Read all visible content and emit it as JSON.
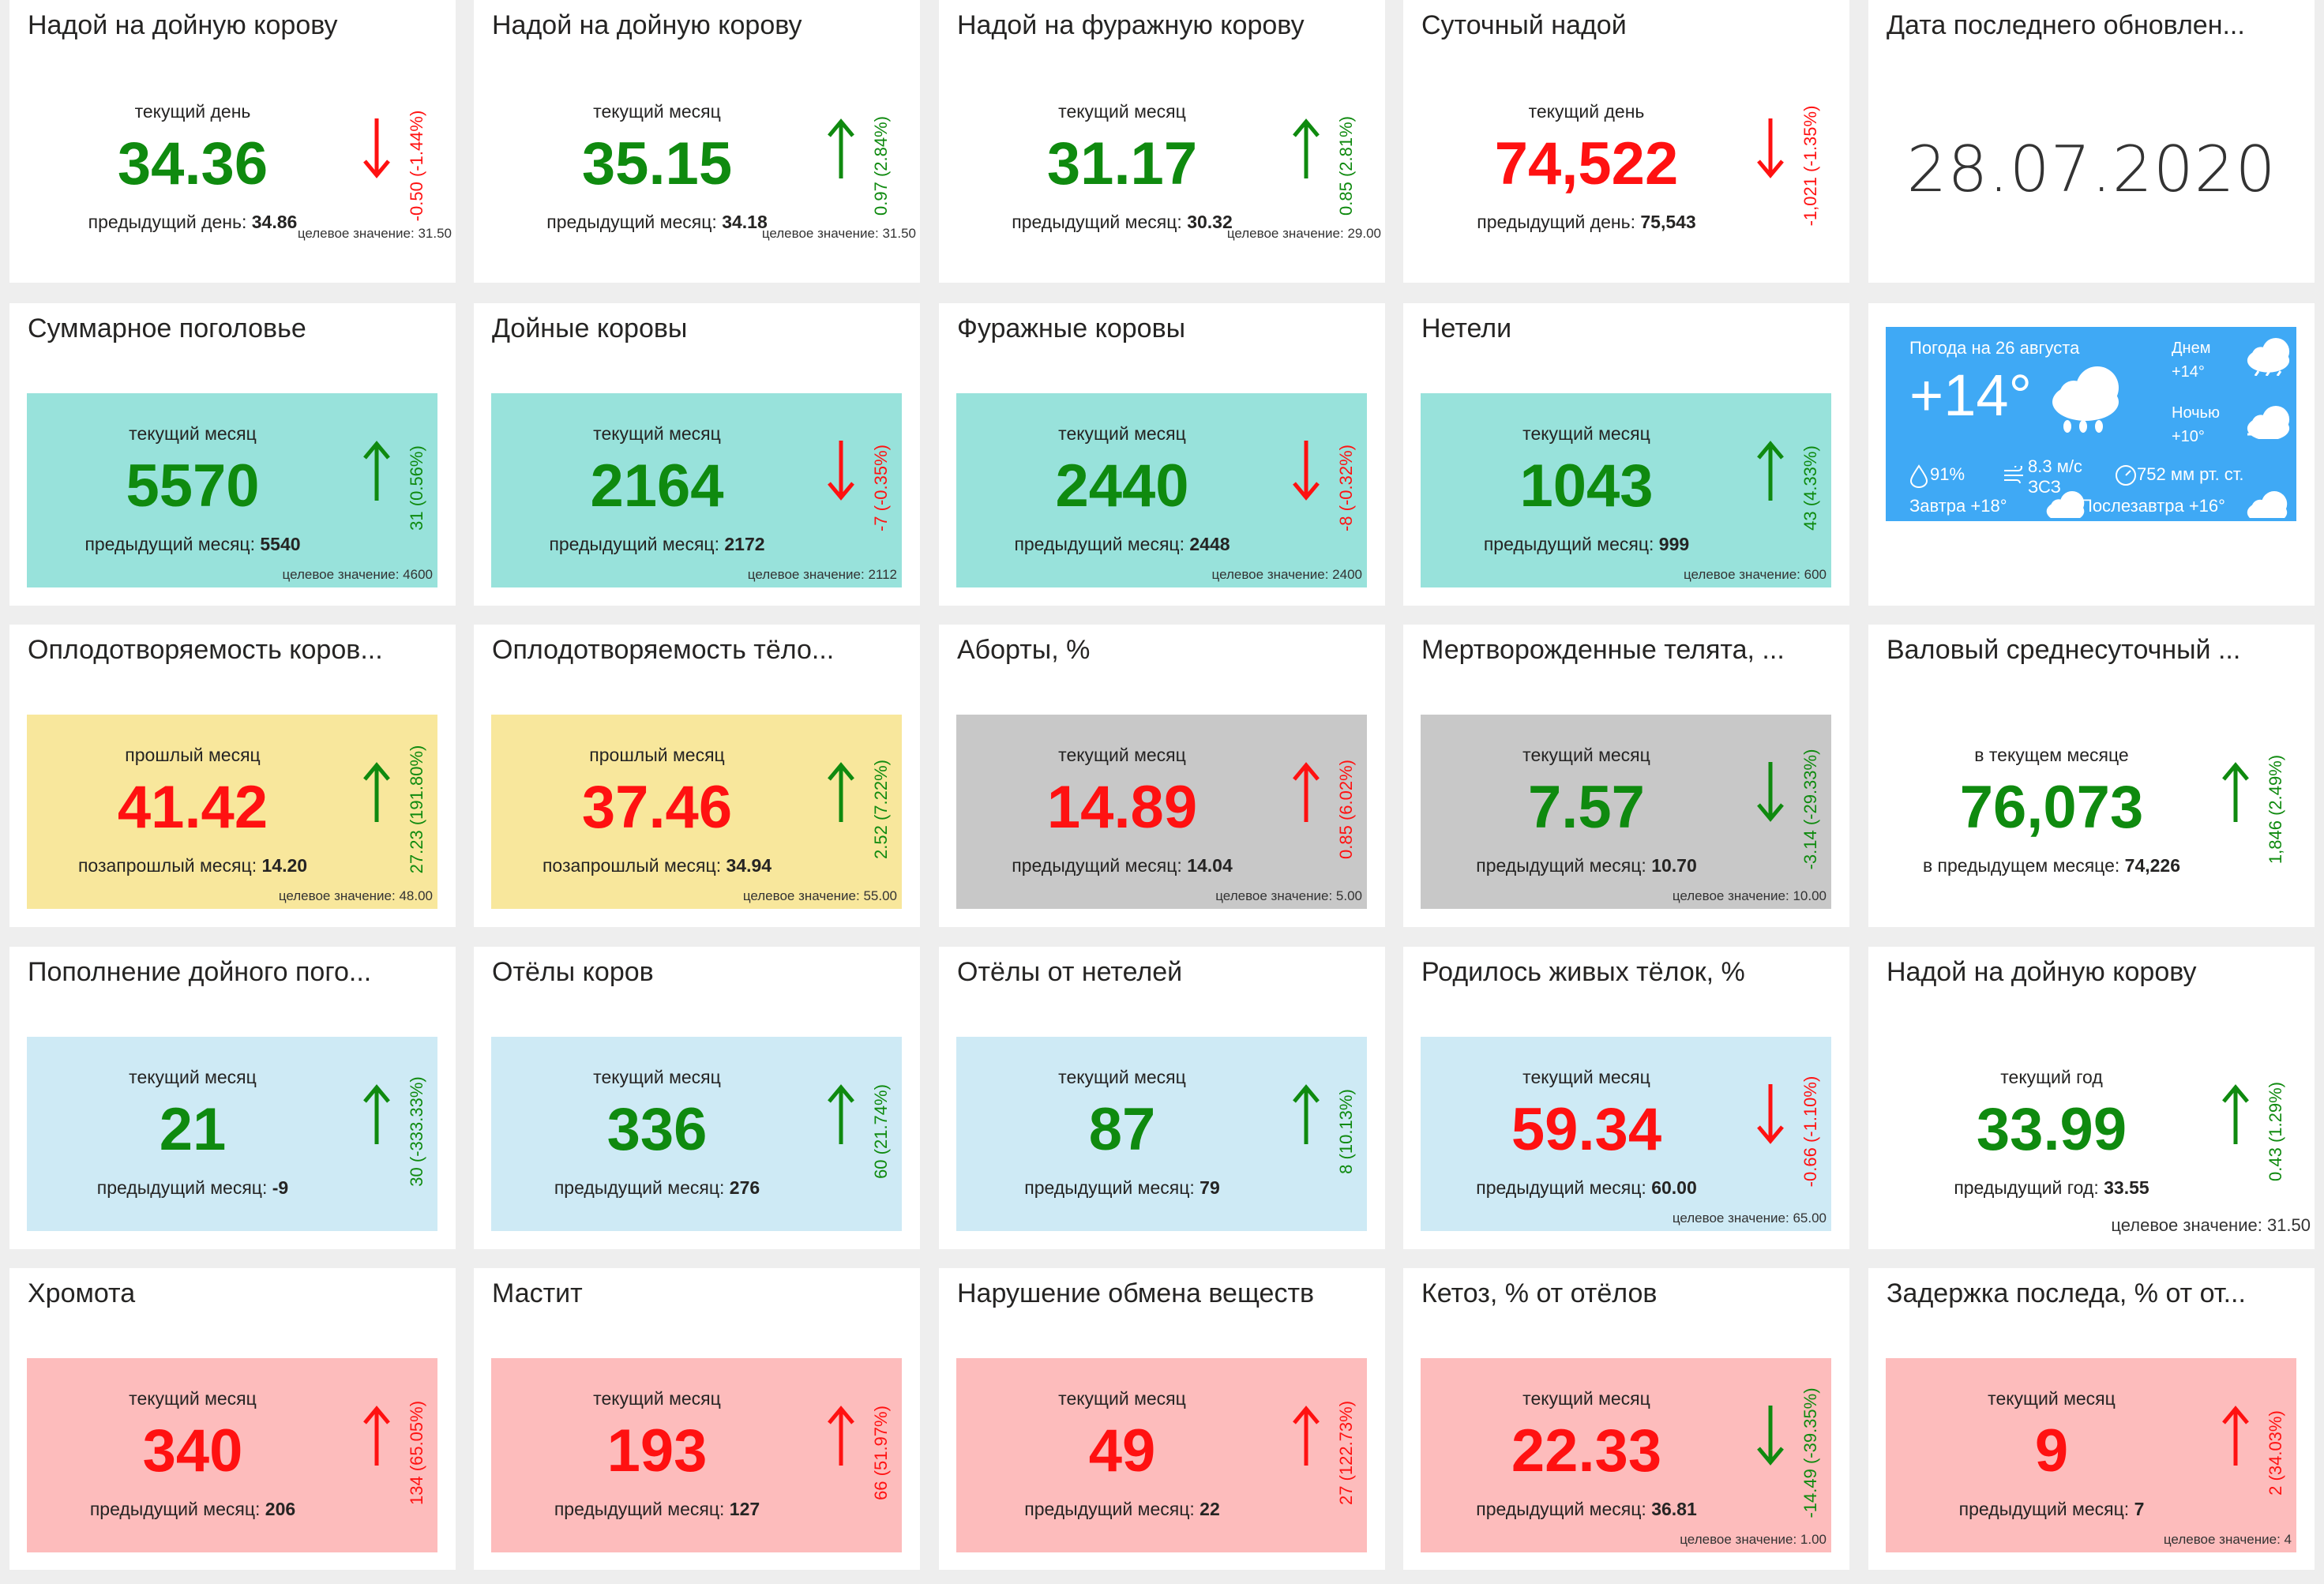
{
  "colors": {
    "green": "#0f8a0f",
    "red": "#ff1111",
    "teal": "#98e2db",
    "yellow": "#f8e79c",
    "gray": "#c8c8c8",
    "lightblue": "#ceeaf5",
    "pink": "#fdbcbc",
    "weather_bg": "#3fa9f5"
  },
  "tiles": [
    {
      "title": "Надой на дойную корову",
      "period": "текущий день",
      "value": "34.36",
      "value_color": "green",
      "prev_label": "предыдущий день:",
      "prev_value": "34.86",
      "change": "-0.50 (-1.44%)",
      "direction": "down",
      "change_color": "red",
      "target": "целевое значение: 31.50",
      "bg": "none"
    },
    {
      "title": "Надой на дойную корову",
      "period": "текущий месяц",
      "value": "35.15",
      "value_color": "green",
      "prev_label": "предыдущий месяц:",
      "prev_value": "34.18",
      "change": "0.97 (2.84%)",
      "direction": "up",
      "change_color": "green",
      "target": "целевое значение: 31.50",
      "bg": "none"
    },
    {
      "title": "Надой на фуражную корову",
      "period": "текущий месяц",
      "value": "31.17",
      "value_color": "green",
      "prev_label": "предыдущий месяц:",
      "prev_value": "30.32",
      "change": "0.85 (2.81%)",
      "direction": "up",
      "change_color": "green",
      "target": "целевое значение: 29.00",
      "bg": "none"
    },
    {
      "title": "Суточный надой",
      "period": "текущий день",
      "value": "74,522",
      "value_color": "red",
      "prev_label": "предыдущий день:",
      "prev_value": "75,543",
      "change": "-1,021 (-1.35%)",
      "direction": "down",
      "change_color": "red",
      "target": "",
      "bg": "none"
    },
    {
      "type": "date",
      "title": "Дата последнего обновлен...",
      "value": "28.07.2020"
    },
    {
      "title": "Суммарное поголовье",
      "period": "текущий месяц",
      "value": "5570",
      "value_color": "green",
      "prev_label": "предыдущий месяц:",
      "prev_value": "5540",
      "change": "31 (0.56%)",
      "direction": "up",
      "change_color": "green",
      "target": "целевое значение: 4600",
      "bg": "teal"
    },
    {
      "title": "Дойные коровы",
      "period": "текущий месяц",
      "value": "2164",
      "value_color": "green",
      "prev_label": "предыдущий месяц:",
      "prev_value": "2172",
      "change": "-7 (-0.35%)",
      "direction": "down",
      "change_color": "red",
      "target": "целевое значение: 2112",
      "bg": "teal"
    },
    {
      "title": "Фуражные коровы",
      "period": "текущий месяц",
      "value": "2440",
      "value_color": "green",
      "prev_label": "предыдущий месяц:",
      "prev_value": "2448",
      "change": "-8 (-0.32%)",
      "direction": "down",
      "change_color": "red",
      "target": "целевое значение: 2400",
      "bg": "teal"
    },
    {
      "title": "Нетели",
      "period": "текущий месяц",
      "value": "1043",
      "value_color": "green",
      "prev_label": "предыдущий месяц:",
      "prev_value": "999",
      "change": "43 (4.33%)",
      "direction": "up",
      "change_color": "green",
      "target": "целевое значение: 600",
      "bg": "teal"
    },
    {
      "type": "weather"
    },
    {
      "title": "Оплодотворяемость коров...",
      "period": "прошлый месяц",
      "value": "41.42",
      "value_color": "red",
      "prev_label": "позапрошлый месяц:",
      "prev_value": "14.20",
      "change": "27.23 (191.80%)",
      "direction": "up",
      "change_color": "green",
      "target": "целевое значение: 48.00",
      "bg": "yellow"
    },
    {
      "title": "Оплодотворяемость тёло...",
      "period": "прошлый месяц",
      "value": "37.46",
      "value_color": "red",
      "prev_label": "позапрошлый месяц:",
      "prev_value": "34.94",
      "change": "2.52 (7.22%)",
      "direction": "up",
      "change_color": "green",
      "target": "целевое значение: 55.00",
      "bg": "yellow"
    },
    {
      "title": "Аборты, %",
      "period": "текущий месяц",
      "value": "14.89",
      "value_color": "red",
      "prev_label": "предыдущий месяц:",
      "prev_value": "14.04",
      "change": "0.85 (6.02%)",
      "direction": "up",
      "change_color": "red",
      "target": "целевое значение: 5.00",
      "bg": "gray"
    },
    {
      "title": "Мертворожденные телята, ...",
      "period": "текущий месяц",
      "value": "7.57",
      "value_color": "green",
      "prev_label": "предыдущий месяц:",
      "prev_value": "10.70",
      "change": "-3.14 (-29.33%)",
      "direction": "down",
      "change_color": "green",
      "target": "целевое значение: 10.00",
      "bg": "gray"
    },
    {
      "title": "Валовый среднесуточный ...",
      "period": "в текущем месяце",
      "value": "76,073",
      "value_color": "green",
      "prev_label": "в предыдущем месяце:",
      "prev_value": "74,226",
      "change": "1,846 (2.49%)",
      "direction": "up",
      "change_color": "green",
      "target": "",
      "bg": "none"
    },
    {
      "title": "Пополнение дойного пого...",
      "period": "текущий месяц",
      "value": "21",
      "value_color": "green",
      "prev_label": "предыдущий месяц:",
      "prev_value": "-9",
      "change": "30 (-333.33%)",
      "direction": "up",
      "change_color": "green",
      "target": "",
      "bg": "lightblue"
    },
    {
      "title": "Отёлы коров",
      "period": "текущий месяц",
      "value": "336",
      "value_color": "green",
      "prev_label": "предыдущий месяц:",
      "prev_value": "276",
      "change": "60 (21.74%)",
      "direction": "up",
      "change_color": "green",
      "target": "",
      "bg": "lightblue"
    },
    {
      "title": "Отёлы от нетелей",
      "period": "текущий месяц",
      "value": "87",
      "value_color": "green",
      "prev_label": "предыдущий месяц:",
      "prev_value": "79",
      "change": "8 (10.13%)",
      "direction": "up",
      "change_color": "green",
      "target": "",
      "bg": "lightblue"
    },
    {
      "title": "Родилось живых тёлок, %",
      "period": "текущий месяц",
      "value": "59.34",
      "value_color": "red",
      "prev_label": "предыдущий месяц:",
      "prev_value": "60.00",
      "change": "-0.66 (-1.10%)",
      "direction": "down",
      "change_color": "red",
      "target": "целевое значение: 65.00",
      "bg": "lightblue"
    },
    {
      "title": "Надой на дойную корову",
      "period": "текущий год",
      "value": "33.99",
      "value_color": "green",
      "prev_label": "предыдущий год:",
      "prev_value": "33.55",
      "change": "0.43 (1.29%)",
      "direction": "up",
      "change_color": "green",
      "target": "целевое значение: 31.50",
      "bg": "none"
    },
    {
      "title": "Хромота",
      "period": "текущий месяц",
      "value": "340",
      "value_color": "red",
      "prev_label": "предыдущий месяц:",
      "prev_value": "206",
      "change": "134 (65.05%)",
      "direction": "up",
      "change_color": "red",
      "target": "",
      "bg": "pink"
    },
    {
      "title": "Мастит",
      "period": "текущий месяц",
      "value": "193",
      "value_color": "red",
      "prev_label": "предыдущий месяц:",
      "prev_value": "127",
      "change": "66 (51.97%)",
      "direction": "up",
      "change_color": "red",
      "target": "",
      "bg": "pink"
    },
    {
      "title": "Нарушение обмена веществ",
      "period": "текущий месяц",
      "value": "49",
      "value_color": "red",
      "prev_label": "предыдущий месяц:",
      "prev_value": "22",
      "change": "27 (122.73%)",
      "direction": "up",
      "change_color": "red",
      "target": "",
      "bg": "pink"
    },
    {
      "title": "Кетоз, % от отёлов",
      "period": "текущий месяц",
      "value": "22.33",
      "value_color": "red",
      "prev_label": "предыдущий месяц:",
      "prev_value": "36.81",
      "change": "-14.49 (-39.35%)",
      "direction": "down",
      "change_color": "green",
      "target": "целевое значение: 1.00",
      "bg": "pink"
    },
    {
      "title": "Задержка последа, % от от...",
      "period": "текущий месяц",
      "value": "9",
      "value_color": "red",
      "prev_label": "предыдущий месяц:",
      "prev_value": "7",
      "change": "2 (34.03%)",
      "direction": "up",
      "change_color": "red",
      "target": "целевое значение: 4",
      "bg": "pink"
    }
  ],
  "weather": {
    "header": "Погода на 26 августа",
    "temp": "+14°",
    "day_label": "Днем",
    "day_temp": "+14°",
    "night_label": "Ночью",
    "night_temp": "+10°",
    "humidity": "91%",
    "wind": "8.3 м/с",
    "wind_dir": "ЗСЗ",
    "pressure": "752 мм рт. ст.",
    "tomorrow": "Завтра +18°",
    "after_tomorrow": "Послезавтра +16°",
    "icons": [
      "rain-cloud-icon",
      "drop-icon",
      "wind-icon",
      "pressure-gauge-icon",
      "cloud-icon"
    ]
  }
}
